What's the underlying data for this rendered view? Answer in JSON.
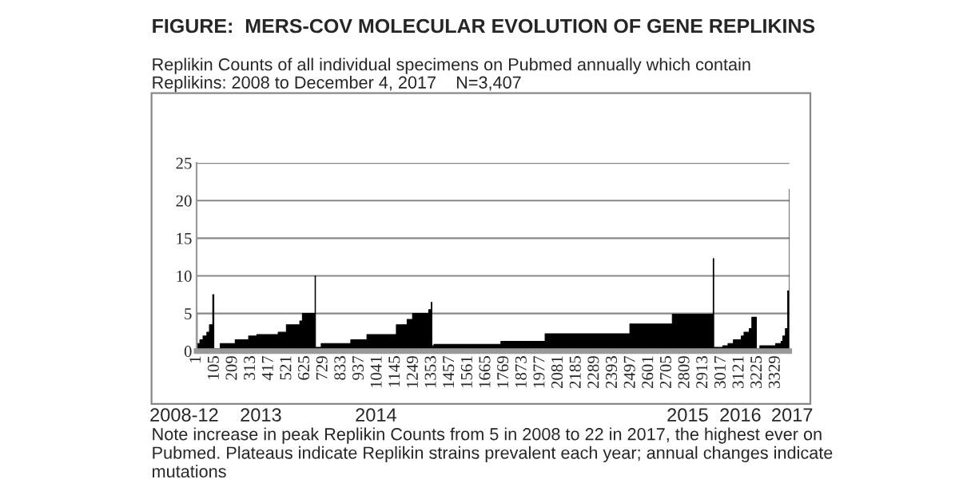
{
  "chart_data": {
    "type": "area",
    "title": "FIGURE:  MERS-COV MOLECULAR EVOLUTION OF GENE REPLIKINS",
    "subtitle": "Replikin Counts of all individual specimens on Pubmed annually which contain\nReplikins: 2008 to December 4, 2017    N=3,407",
    "x": [
      1,
      4,
      20,
      38,
      60,
      75,
      94,
      100,
      137,
      223,
      300,
      347,
      470,
      517,
      594,
      609,
      682,
      684,
      717,
      887,
      980,
      1149,
      1211,
      1242,
      1335,
      1350,
      1353,
      1365,
      1750,
      2004,
      2491,
      2735,
      2970,
      2973,
      3025,
      3055,
      3086,
      3131,
      3147,
      3177,
      3192,
      3218,
      3238,
      3329,
      3360,
      3370,
      3385,
      3398,
      3407
    ],
    "series": [
      {
        "color": "#000000",
        "values": [
          5,
          1,
          1.5,
          2,
          2.5,
          3.5,
          7.5,
          0.3,
          1,
          1.5,
          2,
          2.2,
          2.5,
          3.5,
          4,
          5,
          10,
          0.5,
          1,
          1.5,
          2.2,
          3.5,
          4.2,
          5,
          5.5,
          6.5,
          0.7,
          0.9,
          1.3,
          2.3,
          3.6,
          4.9,
          12.3,
          0.5,
          0.7,
          1,
          1.5,
          2,
          2.5,
          3,
          4.5,
          0.3,
          0.7,
          1,
          1.3,
          2,
          3,
          8,
          21.5
        ]
      }
    ],
    "xlim": [
      1,
      3407
    ],
    "xticks": [
      1,
      105,
      209,
      313,
      417,
      521,
      625,
      729,
      833,
      937,
      1041,
      1145,
      1249,
      1353,
      1457,
      1561,
      1665,
      1769,
      1873,
      1977,
      2081,
      2185,
      2289,
      2393,
      2497,
      2601,
      2705,
      2809,
      2913,
      3017,
      3121,
      3225,
      3329
    ],
    "ylim": [
      0,
      25
    ],
    "yticks": [
      0,
      5,
      10,
      15,
      20,
      25
    ],
    "grid": "y",
    "annotations": [
      "2008-12",
      "2013",
      "2014",
      "2015",
      "2016",
      "2017",
      "Note increase in peak Replikin Counts from 5 in 2008 to 22 in 2017, the highest ever on\nPubmed. Plateaus indicate Replikin strains prevalent each year; annual changes indicate\nmutations"
    ]
  }
}
